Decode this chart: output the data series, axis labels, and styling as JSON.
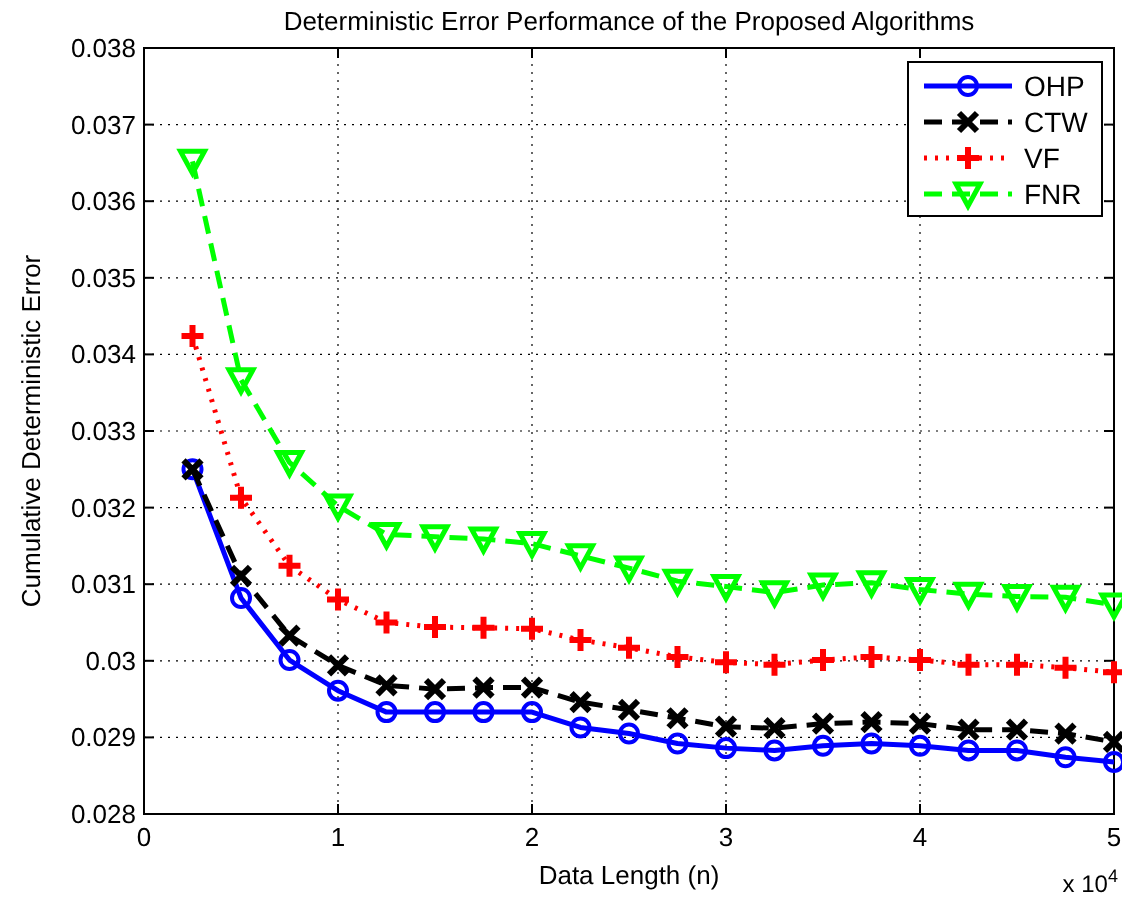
{
  "chart_data": {
    "type": "line",
    "title": "Deterministic Error Performance of the Proposed Algorithms",
    "xlabel": "Data Length (n)",
    "ylabel": "Cumulative Deterministic Error",
    "annotations": [
      "x 10$^{4}$"
    ],
    "x": [
      0.25,
      0.5,
      0.75,
      1,
      1.25,
      1.5,
      1.75,
      2,
      2.25,
      2.5,
      2.75,
      3,
      3.25,
      3.5,
      3.75,
      4,
      4.25,
      4.5,
      4.75,
      5
    ],
    "xlim": [
      0,
      5
    ],
    "xticks": [
      0,
      1,
      2,
      3,
      4,
      5
    ],
    "ylim": [
      0.028,
      0.038
    ],
    "yticks": [
      {
        "value": 0.028,
        "label": "0.028"
      },
      {
        "value": 0.029,
        "label": "0.029"
      },
      {
        "value": 0.03,
        "label": "0.03"
      },
      {
        "value": 0.031,
        "label": "0.031"
      },
      {
        "value": 0.032,
        "label": "0.032"
      },
      {
        "value": 0.033,
        "label": "0.033"
      },
      {
        "value": 0.034,
        "label": "0.034"
      },
      {
        "value": 0.035,
        "label": "0.035"
      },
      {
        "value": 0.036,
        "label": "0.036"
      },
      {
        "value": 0.037,
        "label": "0.037"
      },
      {
        "value": 0.038,
        "label": "0.038"
      }
    ],
    "grid": true,
    "legend": "top right",
    "series": [
      {
        "name": "OHP",
        "color": "#0000ff",
        "marker": "circle",
        "line_style": "solid",
        "values": [
          0.0325,
          0.03082,
          0.03001,
          0.02961,
          0.02933,
          0.02933,
          0.02933,
          0.02933,
          0.02913,
          0.02905,
          0.02892,
          0.02886,
          0.02883,
          0.02889,
          0.02892,
          0.02889,
          0.02883,
          0.02883,
          0.02874,
          0.02868
        ]
      },
      {
        "name": "CTW",
        "color": "#000000",
        "marker": "x",
        "line_style": "dashed",
        "values": [
          0.0325,
          0.03111,
          0.03033,
          0.02994,
          0.02968,
          0.02963,
          0.02965,
          0.02965,
          0.02946,
          0.02936,
          0.02925,
          0.02914,
          0.02912,
          0.02918,
          0.0292,
          0.02918,
          0.0291,
          0.0291,
          0.02905,
          0.02894
        ]
      },
      {
        "name": "VF",
        "color": "#ff0000",
        "marker": "cross",
        "line_style": "dotted",
        "values": [
          0.03424,
          0.03213,
          0.03124,
          0.0308,
          0.0305,
          0.03044,
          0.03043,
          0.03042,
          0.03027,
          0.03017,
          0.03005,
          0.02998,
          0.02995,
          0.03001,
          0.03005,
          0.03001,
          0.02995,
          0.02995,
          0.02991,
          0.02985
        ]
      },
      {
        "name": "FNR",
        "color": "#00ff00",
        "marker": "triangle",
        "line_style": "dashed",
        "values": [
          0.03652,
          0.03367,
          0.03259,
          0.03202,
          0.03165,
          0.03162,
          0.03159,
          0.03153,
          0.03137,
          0.03121,
          0.03104,
          0.03097,
          0.03089,
          0.03099,
          0.03102,
          0.03093,
          0.03087,
          0.03084,
          0.03083,
          0.03073
        ]
      }
    ]
  }
}
